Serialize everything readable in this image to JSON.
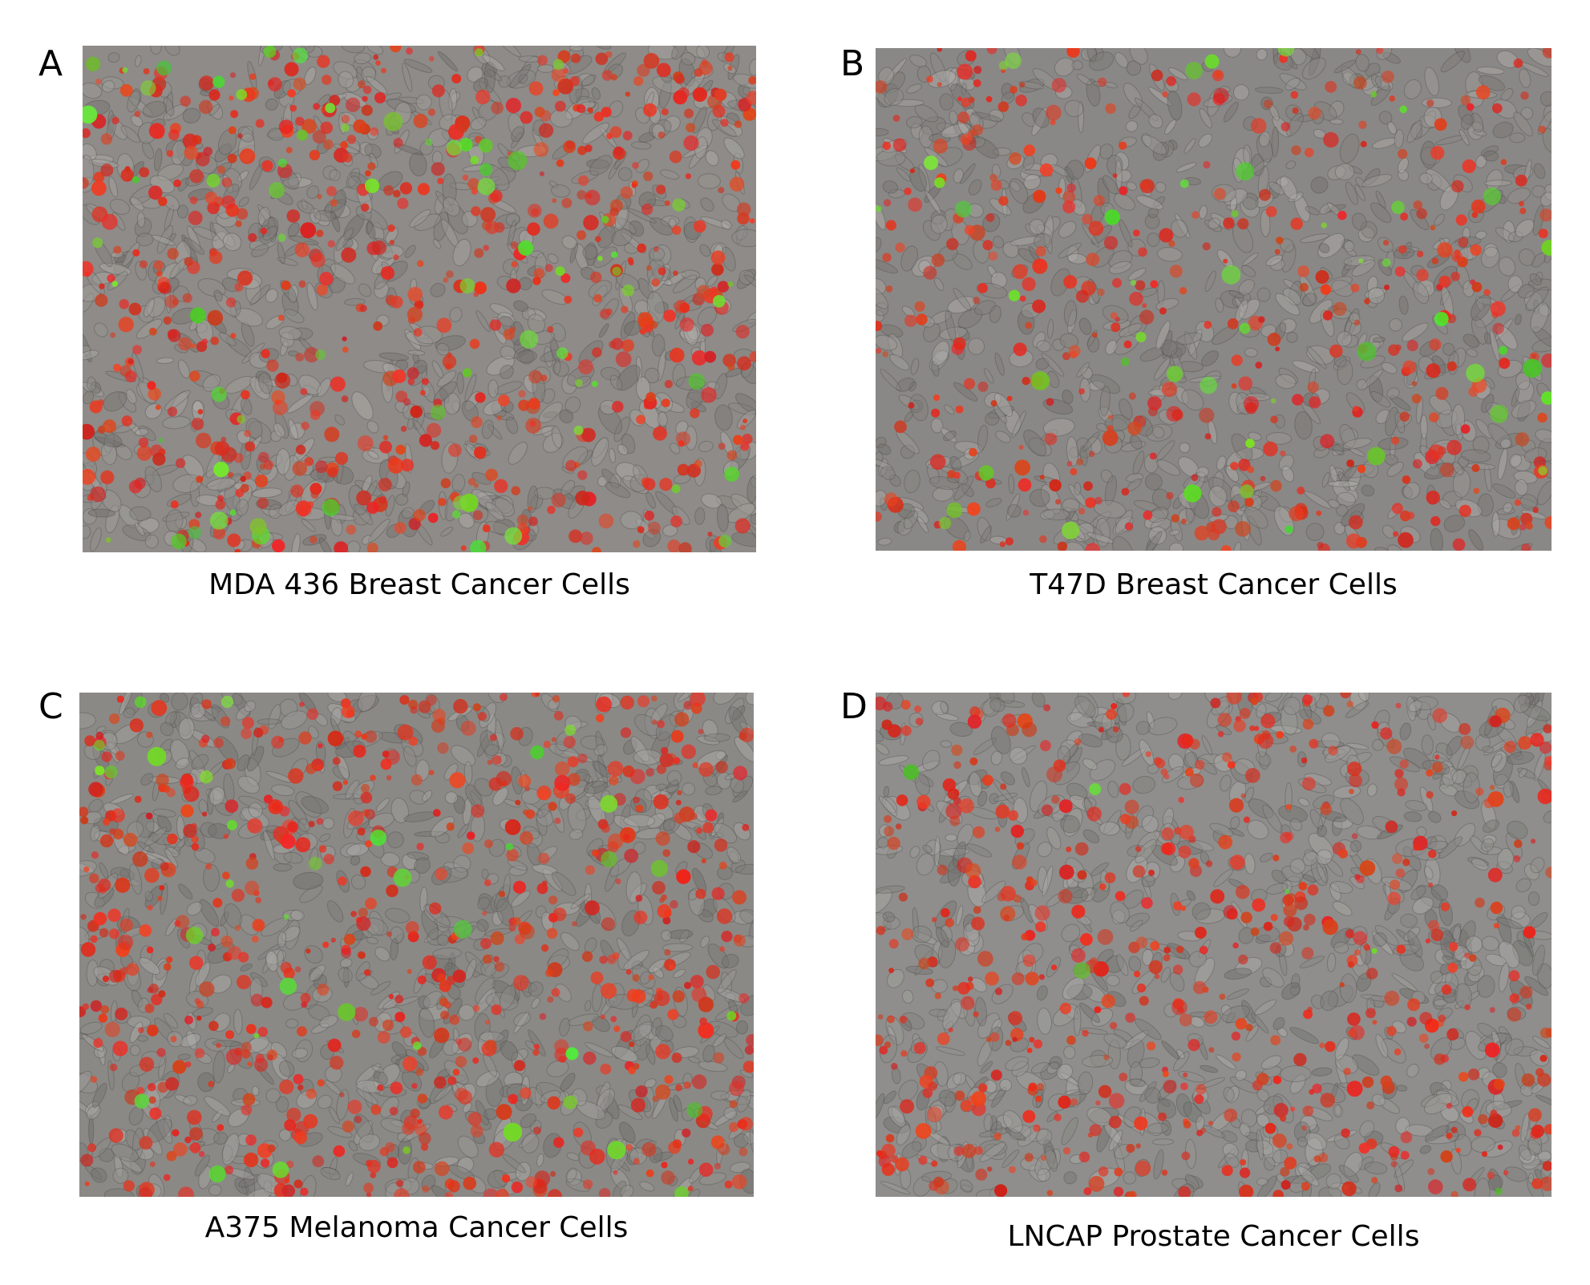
{
  "panels": [
    {
      "letter": "A",
      "caption": "MDA 436 Breast Cancer Cells",
      "description_style": "dense spindle cells",
      "background_color": "#8e8b88",
      "red_density": 0.55,
      "green_density": 0.12
    },
    {
      "letter": "B",
      "caption": "T47D Breast Cancer Cells",
      "description_style": "clustered colonies",
      "background_color": "#8a8886",
      "red_density": 0.35,
      "green_density": 0.08
    },
    {
      "letter": "C",
      "caption": "A375 Melanoma Cancer Cells",
      "description_style": "dense mixed cells",
      "background_color": "#8b8986",
      "red_density": 0.6,
      "green_density": 0.06
    },
    {
      "letter": "D",
      "caption": "LNCAP Prostate Cancer Cells",
      "description_style": "confluent flat cells",
      "background_color": "#8f8e8c",
      "red_density": 0.5,
      "green_density": 0.01
    }
  ],
  "colors": {
    "red_stain": "#e0341f",
    "green_stain": "#4ed12a",
    "cell_outline": "#5f5d5a"
  }
}
